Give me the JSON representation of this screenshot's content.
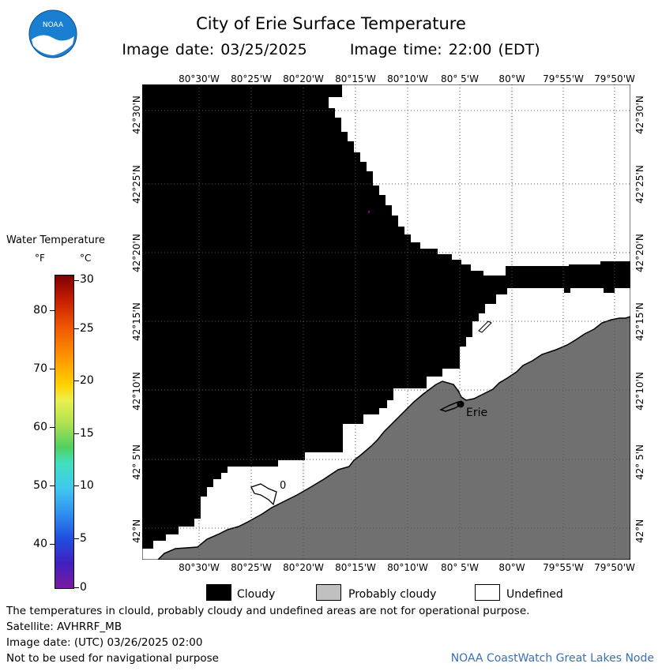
{
  "header": {
    "logo_text": "NOAA",
    "title": "City of Erie Surface Temperature",
    "image_date_label": "Image date: 03/25/2025",
    "image_time_label": "Image time: 22:00 (EDT)"
  },
  "map": {
    "lon_labels": [
      "80°30'W",
      "80°25'W",
      "80°20'W",
      "80°15'W",
      "80°10'W",
      "80° 5'W",
      "80°W",
      "79°55'W",
      "79°50'W"
    ],
    "lat_labels": [
      "42°30'N",
      "42°25'N",
      "42°20'N",
      "42°15'N",
      "42°10'N",
      "42° 5'N",
      "42°N"
    ],
    "city_label": "Erie",
    "contour_label": "0",
    "colors": {
      "cloudy": "#000000",
      "land": "#707070",
      "undefined": "#ffffff",
      "grid": "#555555"
    }
  },
  "legend": {
    "title": "Water Temperature",
    "unit_f": "°F",
    "unit_c": "°C",
    "f_ticks": [
      "80",
      "70",
      "60",
      "50",
      "40"
    ],
    "c_ticks": [
      "30",
      "25",
      "20",
      "15",
      "10",
      "5",
      "0"
    ],
    "items": [
      {
        "label": "Cloudy",
        "color": "#000000"
      },
      {
        "label": "Probably cloudy",
        "color": "#c0c0c0"
      },
      {
        "label": "Undefined",
        "color": "#ffffff"
      }
    ]
  },
  "footer": {
    "disclaimer": "The temperatures in clould, probably cloudy and undefined areas are not for operational purpose.",
    "satellite": "Satellite: AVHRRF_MB",
    "utc_date": "Image date: (UTC) 03/26/2025  02:00",
    "navigation": "Not to be used for navigational purpose",
    "node": "NOAA CoastWatch Great Lakes Node"
  }
}
